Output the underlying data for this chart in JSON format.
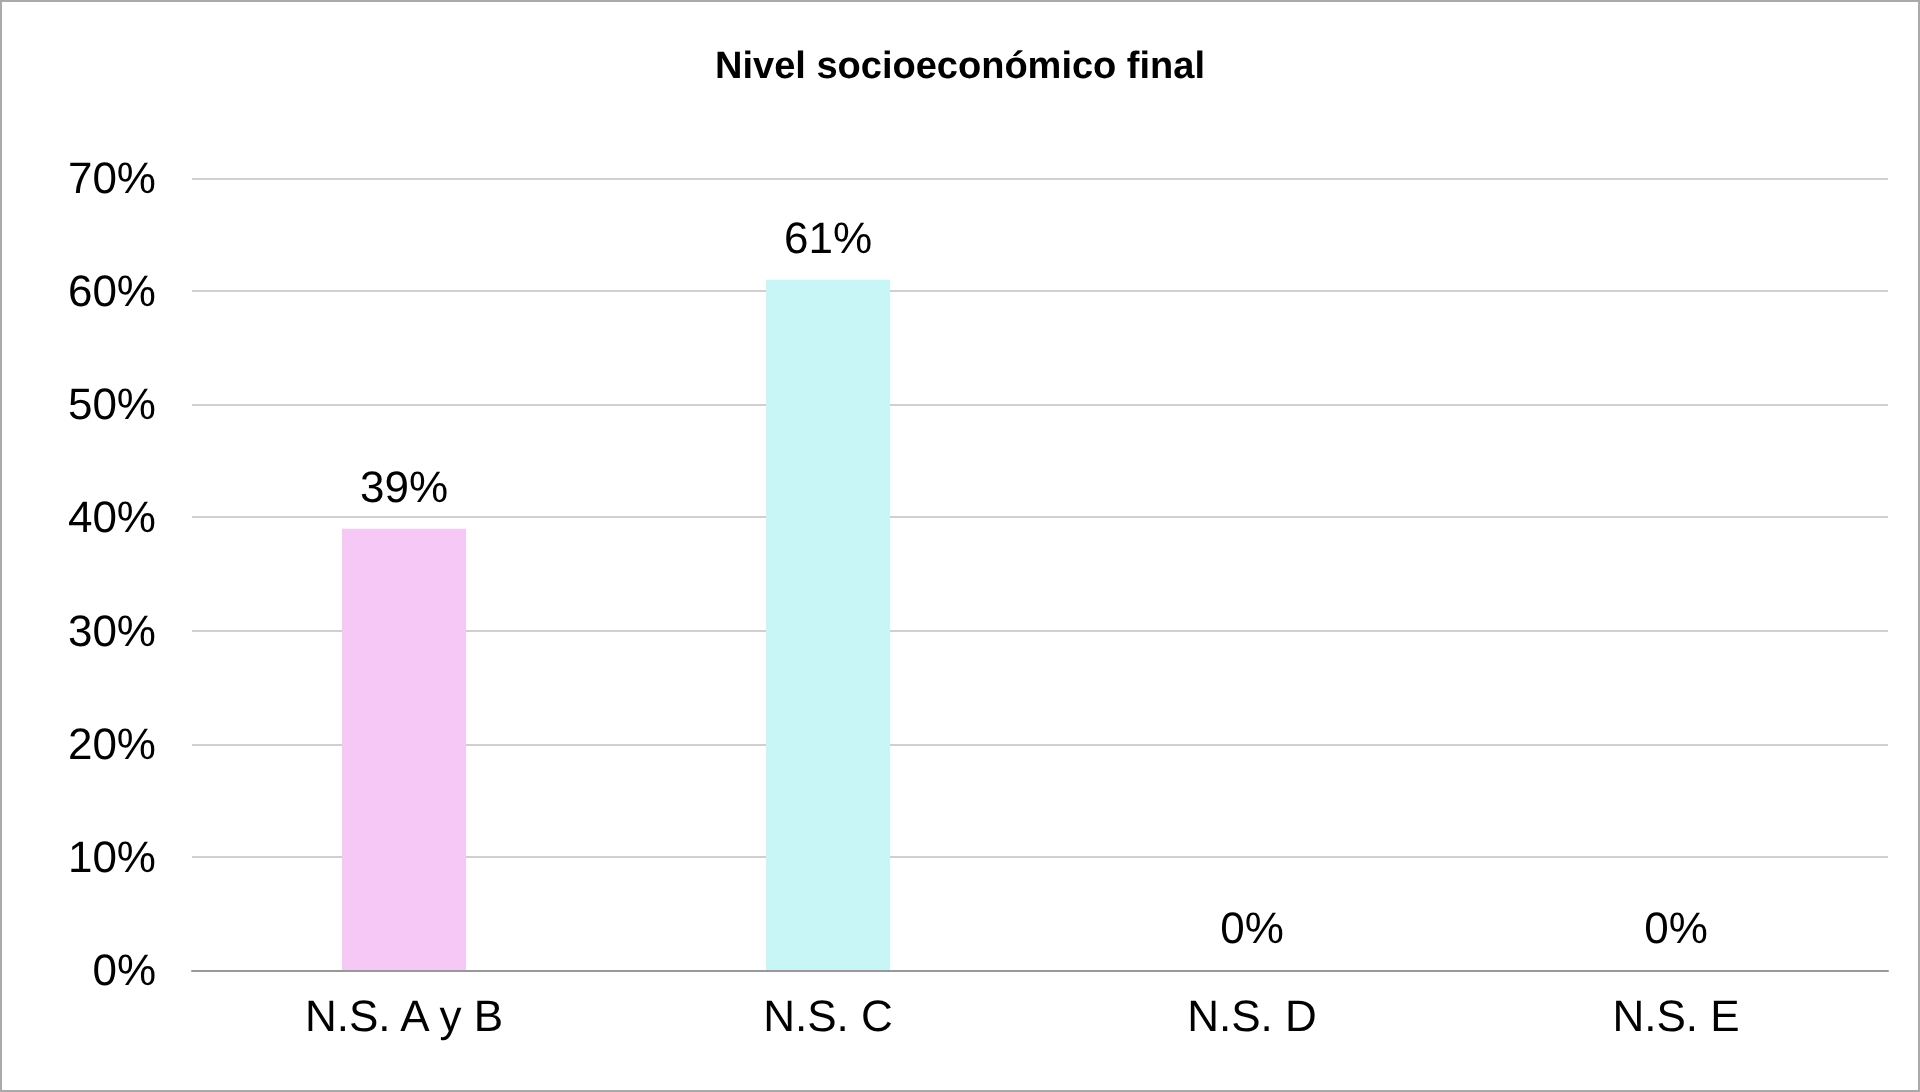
{
  "chart_data": {
    "type": "bar",
    "title": "Nivel socioeconómico final",
    "categories": [
      "N.S. A y B",
      "N.S. C",
      "N.S. D",
      "N.S. E"
    ],
    "values": [
      39,
      61,
      0,
      0
    ],
    "value_labels": [
      "39%",
      "61%",
      "0%",
      "0%"
    ],
    "colors": [
      "#f5c8f5",
      "#c8f5f5",
      "#f5c8f5",
      "#c8f5f5"
    ],
    "ylim": [
      0,
      70
    ],
    "yticks": [
      {
        "value": 0,
        "label": "0%"
      },
      {
        "value": 10,
        "label": "10%"
      },
      {
        "value": 20,
        "label": "20%"
      },
      {
        "value": 30,
        "label": "30%"
      },
      {
        "value": 40,
        "label": "40%"
      },
      {
        "value": 50,
        "label": "50%"
      },
      {
        "value": 60,
        "label": "60%"
      },
      {
        "value": 70,
        "label": "70%"
      }
    ],
    "grid": "y"
  }
}
